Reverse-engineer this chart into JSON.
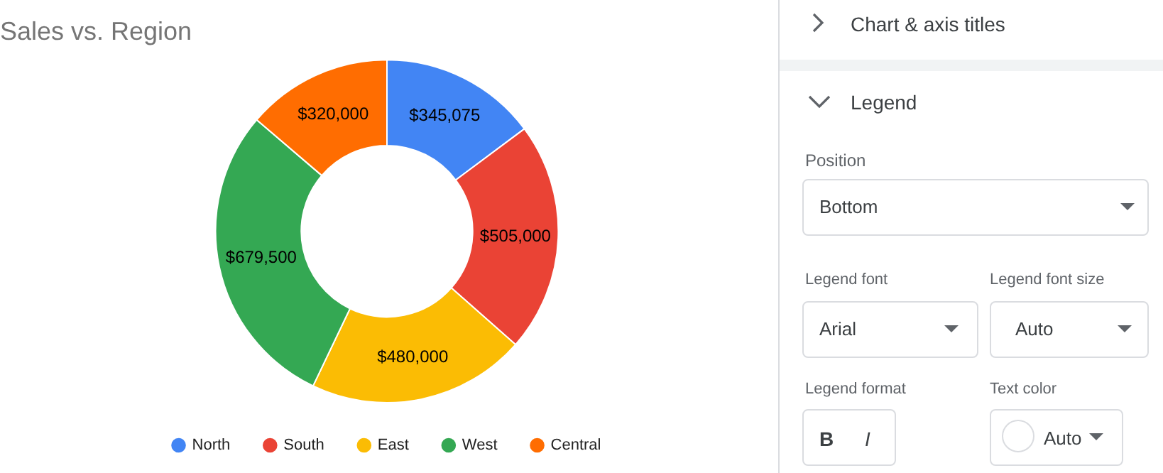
{
  "chart_data": [
    {
      "type": "donut",
      "title": "Sales vs. Region",
      "categories": [
        "North",
        "South",
        "East",
        "West",
        "Central"
      ],
      "values": [
        345075,
        505000,
        480000,
        679500,
        320000
      ],
      "colors": [
        "#4285f4",
        "#ea4335",
        "#fbbc04",
        "#34a853",
        "#ff6d01"
      ],
      "value_labels": [
        "$345,075",
        "$505,000",
        "$480,000",
        "$679,500",
        "$320,000"
      ],
      "legend": "bottom"
    },
    {
      "type": "other",
      "annotations": [
        "Chart & axis titles",
        "Legend",
        "Position",
        "Bottom",
        "Legend font",
        "Legend font size",
        "Arial",
        "Auto",
        "Legend format",
        "Text color",
        "B",
        "I",
        "Auto"
      ]
    }
  ]
}
